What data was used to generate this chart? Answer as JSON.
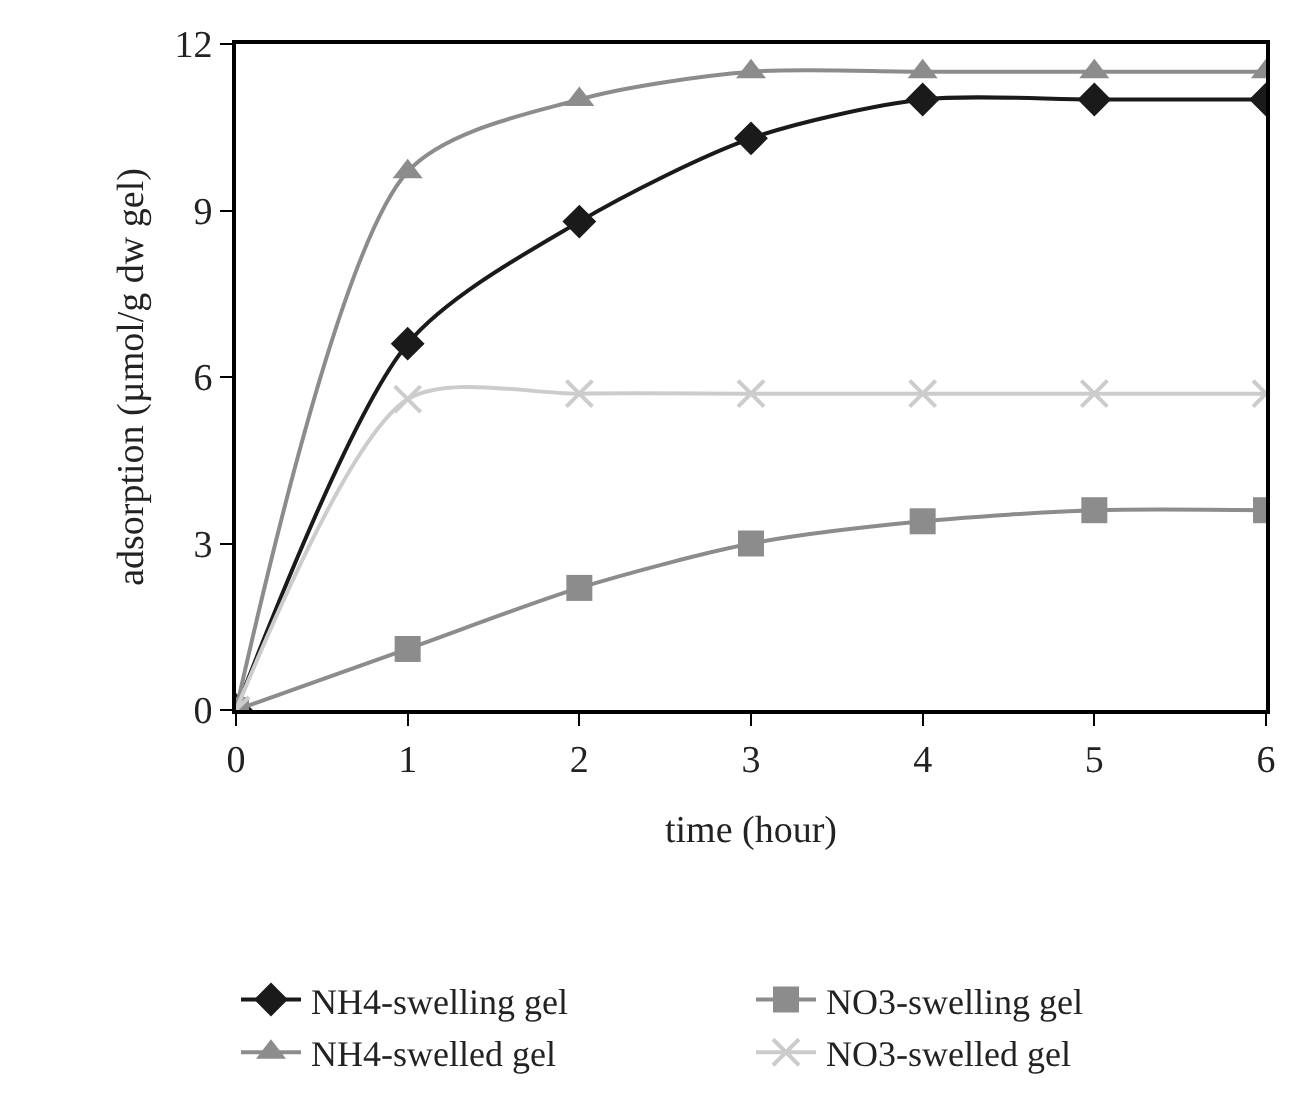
{
  "chart_data": {
    "type": "line",
    "xlabel": "time (hour)",
    "ylabel": "adsorption (µmol/g dw gel)",
    "x": [
      0,
      1,
      2,
      3,
      4,
      5,
      6
    ],
    "series": [
      {
        "name": "NH4-swelling gel",
        "color": "#1a1a1a",
        "marker": "diamond",
        "values": [
          0,
          6.6,
          8.8,
          10.3,
          11.0,
          11.0,
          11.0
        ]
      },
      {
        "name": "NO3-swelling gel",
        "color": "#8c8c8c",
        "marker": "square",
        "values": [
          0,
          1.1,
          2.2,
          3.0,
          3.4,
          3.6,
          3.6
        ]
      },
      {
        "name": "NH4-swelled gel",
        "color": "#8c8c8c",
        "marker": "triangle",
        "values": [
          0,
          9.7,
          11.0,
          11.5,
          11.5,
          11.5,
          11.5
        ]
      },
      {
        "name": "NO3-swelled gel",
        "color": "#cccccc",
        "marker": "cross",
        "values": [
          0,
          5.6,
          5.7,
          5.7,
          5.7,
          5.7,
          5.7
        ]
      }
    ],
    "xlim": [
      0,
      6
    ],
    "xticks": [
      0,
      1,
      2,
      3,
      4,
      5,
      6
    ],
    "ylim": [
      0,
      12
    ],
    "yticks": [
      0,
      3,
      6,
      9,
      12
    ],
    "legend": "bottom",
    "line_style": "solid"
  }
}
